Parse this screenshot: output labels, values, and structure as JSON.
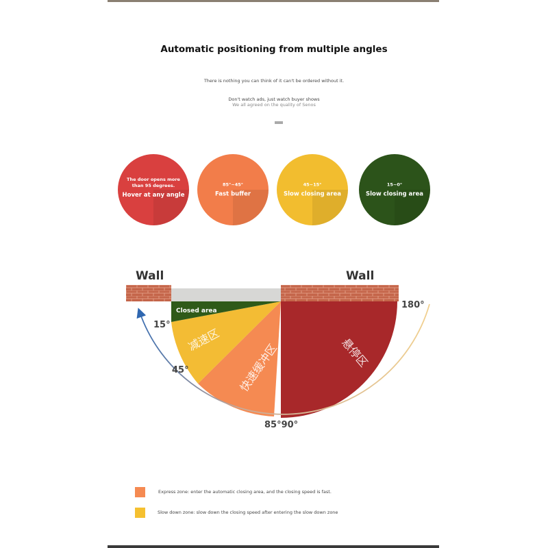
{
  "header": {
    "title": "Automatic positioning from multiple angles",
    "subtitle1": "There is nothing you can think of  it can't be ordered without it.",
    "subtitle2": "Don't watch ads, just watch buyer shows",
    "subtitle3": "We all agreed on the quality of Senos"
  },
  "zones": [
    {
      "range": "The door opens more than 95 degrees.",
      "label": "Hover at any angle",
      "color": "#d9403f"
    },
    {
      "range": "85°~45°",
      "label": "Fast buffer",
      "color": "#f27d4a"
    },
    {
      "range": "45~15°",
      "label": "Slow closing area",
      "color": "#f2bd2f"
    },
    {
      "range": "15~0°",
      "label": "Slow closing area",
      "color": "#2c531a"
    }
  ],
  "diagram": {
    "wall_left": "Wall",
    "wall_right": "Wall",
    "angle_0": "15°",
    "angle_45": "45°",
    "angle_90": "85°90°",
    "angle_180": "180°",
    "closed_area": "Closed area",
    "slow_zone_cn": "减速区",
    "fast_zone_cn": "快速缓冲区",
    "hover_zone_cn": "悬停区",
    "colors": {
      "closed": "#2f5a19",
      "slow": "#f3bc34",
      "fast": "#f58a52",
      "hover": "#a8282a",
      "brick": "#c86a4a",
      "arrow": "#2f67b0"
    }
  },
  "legend": [
    {
      "text": "Express zone: enter the automatic closing area, and the closing speed is fast.",
      "color": "#f58a52"
    },
    {
      "text": "Slow down zone: slow down the closing speed after entering the slow down zone",
      "color": "#f5c030"
    }
  ]
}
